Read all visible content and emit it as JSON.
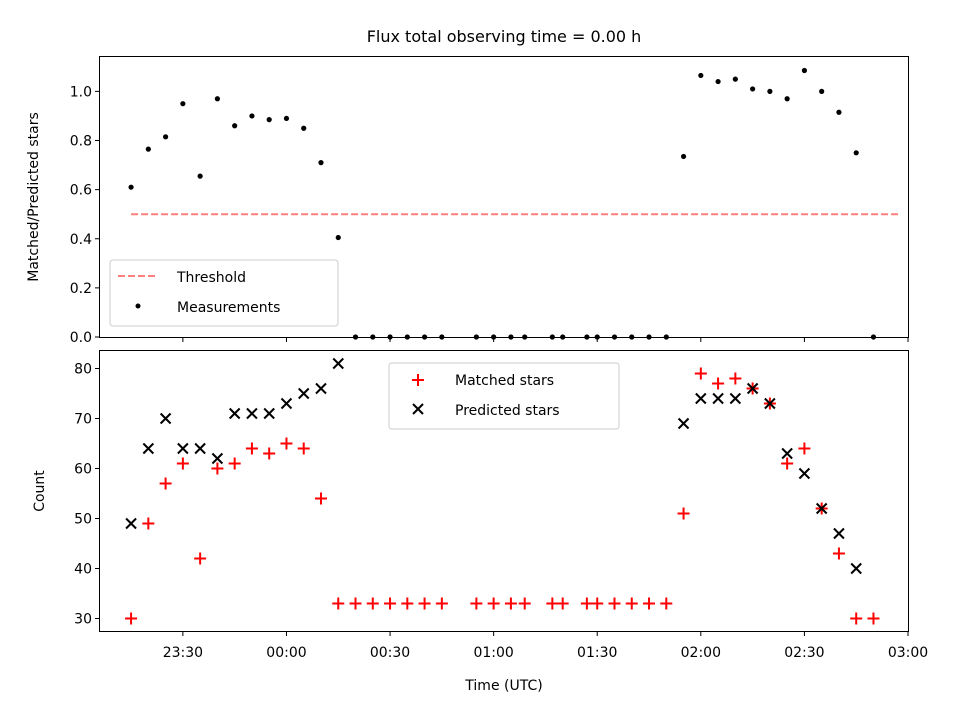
{
  "chart_data": [
    {
      "type": "scatter",
      "title": "Flux total observing time = 0.00 h",
      "xlabel": "",
      "ylabel": "Matched/Predicted stars",
      "ylim": [
        0,
        1.14
      ],
      "yticks": [
        "0.0",
        "0.2",
        "0.4",
        "0.6",
        "0.8",
        "1.0"
      ],
      "yticks_values": [
        0.0,
        0.2,
        0.4,
        0.6,
        0.8,
        1.0
      ],
      "threshold": {
        "name": "Threshold",
        "value": 0.5,
        "x_range": [
          "23:15",
          "02:58"
        ],
        "color": "#ff7f7f",
        "style": "dashed"
      },
      "legend": {
        "placement": "lower-left",
        "entries": [
          "Threshold",
          "Measurements"
        ]
      },
      "series": [
        {
          "name": "Measurements",
          "color": "#000000",
          "marker": "dot",
          "x": [
            "23:15",
            "23:20",
            "23:25",
            "23:30",
            "23:35",
            "23:40",
            "23:45",
            "23:50",
            "23:55",
            "00:00",
            "00:05",
            "00:10",
            "00:15",
            "00:20",
            "00:25",
            "00:30",
            "00:35",
            "00:40",
            "00:45",
            "00:55",
            "01:00",
            "01:05",
            "01:09",
            "01:17",
            "01:20",
            "01:27",
            "01:30",
            "01:35",
            "01:40",
            "01:45",
            "01:50",
            "01:55",
            "02:00",
            "02:05",
            "02:10",
            "02:15",
            "02:20",
            "02:25",
            "02:30",
            "02:35",
            "02:40",
            "02:45",
            "02:50"
          ],
          "y": [
            0.61,
            0.765,
            0.815,
            0.95,
            0.655,
            0.97,
            0.86,
            0.9,
            0.885,
            0.89,
            0.85,
            0.71,
            0.405,
            0.0,
            0.0,
            0.0,
            0.0,
            0.0,
            0.0,
            0.0,
            0.0,
            0.0,
            0.0,
            0.0,
            0.0,
            0.0,
            0.0,
            0.0,
            0.0,
            0.0,
            0.0,
            0.735,
            1.065,
            1.04,
            1.05,
            1.01,
            1.0,
            0.97,
            1.085,
            1.0,
            0.915,
            0.75,
            0.0
          ]
        }
      ]
    },
    {
      "type": "scatter",
      "title": "",
      "xlabel": "Time (UTC)",
      "ylabel": "Count",
      "ylim": [
        27.5,
        83.5
      ],
      "yticks": [
        "30",
        "40",
        "50",
        "60",
        "70",
        "80"
      ],
      "yticks_values": [
        30,
        40,
        50,
        60,
        70,
        80
      ],
      "xlim": [
        "23:06",
        "03:00"
      ],
      "xticks": [
        "23:30",
        "00:00",
        "00:30",
        "01:00",
        "01:30",
        "02:00",
        "02:30",
        "03:00"
      ],
      "xticks_minutes": [
        -30,
        0,
        30,
        60,
        90,
        120,
        150,
        180
      ],
      "legend": {
        "placement": "top-center",
        "entries": [
          "Matched stars",
          "Predicted stars"
        ]
      },
      "series": [
        {
          "name": "Matched stars",
          "color": "#ff0000",
          "marker": "plus",
          "x": [
            "23:15",
            "23:20",
            "23:25",
            "23:30",
            "23:35",
            "23:40",
            "23:45",
            "23:50",
            "23:55",
            "00:00",
            "00:05",
            "00:10",
            "00:15",
            "00:20",
            "00:25",
            "00:30",
            "00:35",
            "00:40",
            "00:45",
            "00:55",
            "01:00",
            "01:05",
            "01:09",
            "01:17",
            "01:20",
            "01:27",
            "01:30",
            "01:35",
            "01:40",
            "01:45",
            "01:50",
            "01:55",
            "02:00",
            "02:05",
            "02:10",
            "02:15",
            "02:20",
            "02:25",
            "02:30",
            "02:35",
            "02:40",
            "02:45",
            "02:50"
          ],
          "y": [
            30,
            49,
            57,
            61,
            42,
            60,
            61,
            64,
            63,
            65,
            64,
            54,
            33,
            33,
            33,
            33,
            33,
            33,
            33,
            33,
            33,
            33,
            33,
            33,
            33,
            33,
            33,
            33,
            33,
            33,
            33,
            51,
            79,
            77,
            78,
            76,
            73,
            61,
            64,
            52,
            43,
            30,
            30
          ]
        },
        {
          "name": "Predicted stars",
          "color": "#000000",
          "marker": "x",
          "x": [
            "23:15",
            "23:20",
            "23:25",
            "23:30",
            "23:35",
            "23:40",
            "23:45",
            "23:50",
            "23:55",
            "00:00",
            "00:05",
            "00:10",
            "00:15",
            "01:55",
            "02:00",
            "02:05",
            "02:10",
            "02:15",
            "02:20",
            "02:25",
            "02:30",
            "02:35",
            "02:40",
            "02:45"
          ],
          "y": [
            49,
            64,
            70,
            64,
            64,
            62,
            71,
            71,
            71,
            73,
            75,
            76,
            81,
            69,
            74,
            74,
            74,
            76,
            73,
            63,
            59,
            52,
            47,
            40
          ]
        }
      ]
    }
  ]
}
